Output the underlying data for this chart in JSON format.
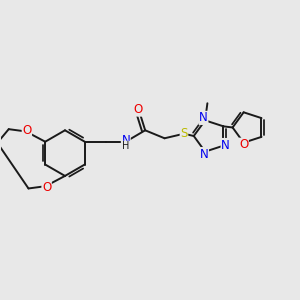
{
  "background_color": "#e8e8e8",
  "atom_colors": {
    "C": "#1a1a1a",
    "N": "#0000ee",
    "O": "#ee0000",
    "S": "#bbbb00",
    "H": "#1a1a1a"
  },
  "bond_color": "#1a1a1a",
  "bond_width": 1.4,
  "font_size_atom": 8.5,
  "fig_size": [
    3.0,
    3.0
  ],
  "dpi": 100
}
